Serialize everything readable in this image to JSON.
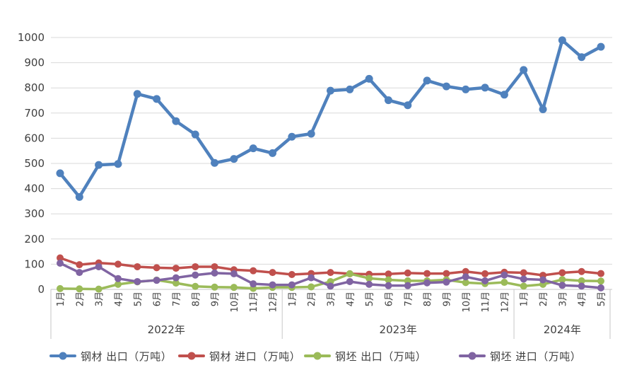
{
  "chart_data": {
    "type": "line",
    "title": "",
    "ylim": [
      0,
      1000
    ],
    "ytick_step": 100,
    "grid": true,
    "legend_position": "bottom",
    "grid_color": "#d9d9d9",
    "axis_line_color": "#c6c6c6",
    "axis_text_color": "#404040",
    "year_groups": [
      {
        "label": "2022年",
        "months": [
          "1月",
          "2月",
          "3月",
          "4月",
          "5月",
          "6月",
          "7月",
          "8月",
          "9月",
          "10月",
          "11月",
          "12月"
        ]
      },
      {
        "label": "2023年",
        "months": [
          "1月",
          "2月",
          "3月",
          "4月",
          "5月",
          "6月",
          "7月",
          "8月",
          "9月",
          "10月",
          "11月",
          "12月"
        ]
      },
      {
        "label": "2024年",
        "months": [
          "1月",
          "2月",
          "3月",
          "4月",
          "5月"
        ]
      }
    ],
    "series": [
      {
        "name": "钢材 出口（万吨）",
        "color": "#4F81BD",
        "values": [
          461,
          367,
          494,
          498,
          776,
          756,
          668,
          615,
          502,
          518,
          560,
          541,
          606,
          618,
          789,
          794,
          836,
          751,
          731,
          829,
          806,
          794,
          801,
          773,
          871,
          715,
          989,
          922,
          963
        ]
      },
      {
        "name": "钢材 进口（万吨）",
        "color": "#C0504D",
        "values": [
          125,
          98,
          105,
          100,
          90,
          86,
          84,
          90,
          90,
          78,
          74,
          67,
          59,
          63,
          67,
          62,
          60,
          61,
          65,
          63,
          63,
          71,
          62,
          68,
          66,
          56,
          66,
          71,
          63
        ]
      },
      {
        "name": "钢坯 出口（万吨）",
        "color": "#9BBB59",
        "values": [
          3,
          2,
          1,
          20,
          30,
          37,
          25,
          12,
          9,
          8,
          4,
          8,
          8,
          10,
          31,
          62,
          44,
          38,
          34,
          34,
          38,
          27,
          23,
          28,
          13,
          20,
          39,
          34,
          33
        ]
      },
      {
        "name": "钢坯 进口（万吨）",
        "color": "#8064A2",
        "values": [
          104,
          67,
          90,
          43,
          31,
          36,
          46,
          57,
          65,
          62,
          22,
          18,
          18,
          46,
          13,
          31,
          20,
          15,
          15,
          26,
          29,
          50,
          34,
          57,
          41,
          38,
          16,
          13,
          6
        ]
      }
    ]
  }
}
